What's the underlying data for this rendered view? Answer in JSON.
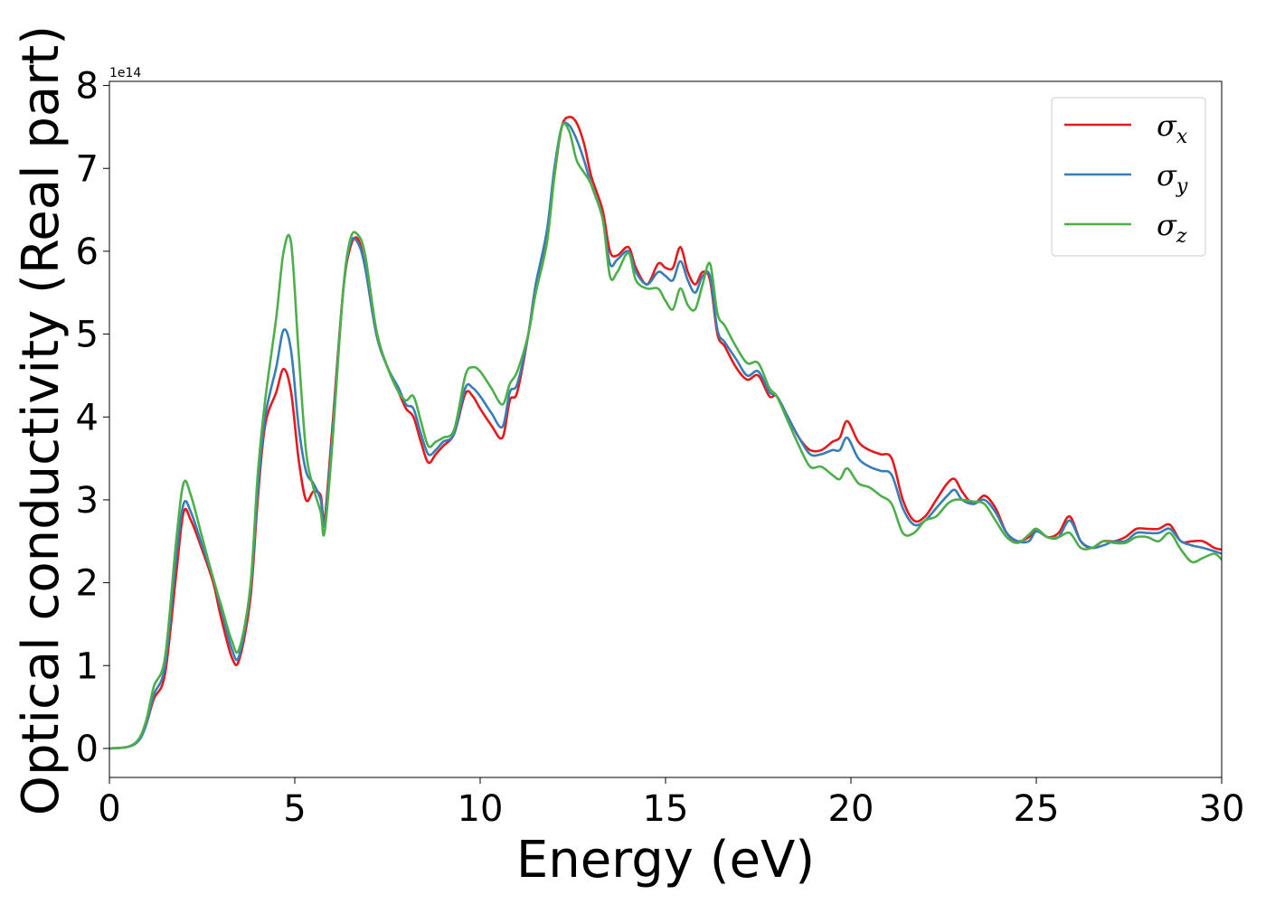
{
  "chart_data": {
    "type": "line",
    "title": "",
    "xlabel": "Energy (eV)",
    "ylabel": "Optical conductivity (Real part)",
    "y_offset_text": "1e14",
    "xlim": [
      0,
      30
    ],
    "ylim": [
      -0.35,
      8.05
    ],
    "xticks": [
      0,
      5,
      10,
      15,
      20,
      25,
      30
    ],
    "yticks": [
      0,
      1,
      2,
      3,
      4,
      5,
      6,
      7,
      8
    ],
    "grid": false,
    "legend_position": "top-right",
    "series": [
      {
        "name": "σx",
        "symbol": "σ",
        "subscript": "x",
        "color": "#e41a1c",
        "x": [
          0,
          0.5,
          0.8,
          1.0,
          1.2,
          1.5,
          1.8,
          2.0,
          2.2,
          2.5,
          2.8,
          3.0,
          3.3,
          3.5,
          3.8,
          4.0,
          4.2,
          4.5,
          4.7,
          4.9,
          5.1,
          5.3,
          5.5,
          5.7,
          5.8,
          6.0,
          6.3,
          6.5,
          6.7,
          6.9,
          7.2,
          7.5,
          7.8,
          8.0,
          8.2,
          8.4,
          8.6,
          8.8,
          9.0,
          9.3,
          9.6,
          9.8,
          10.0,
          10.3,
          10.6,
          10.8,
          11.0,
          11.3,
          11.5,
          11.8,
          12.0,
          12.2,
          12.4,
          12.6,
          12.8,
          13.0,
          13.3,
          13.5,
          13.7,
          14.0,
          14.2,
          14.5,
          14.8,
          15.0,
          15.2,
          15.4,
          15.6,
          15.8,
          16.0,
          16.2,
          16.4,
          16.6,
          16.9,
          17.2,
          17.5,
          17.8,
          18.0,
          18.3,
          18.6,
          18.9,
          19.2,
          19.5,
          19.7,
          19.9,
          20.2,
          20.5,
          20.8,
          21.1,
          21.4,
          21.7,
          22.0,
          22.3,
          22.6,
          22.8,
          23.0,
          23.3,
          23.6,
          23.9,
          24.2,
          24.5,
          24.8,
          25.0,
          25.3,
          25.6,
          25.9,
          26.2,
          26.5,
          26.8,
          27.1,
          27.4,
          27.7,
          28.0,
          28.3,
          28.6,
          28.9,
          29.2,
          29.5,
          29.8,
          30.0
        ],
        "y": [
          0,
          0.02,
          0.1,
          0.3,
          0.6,
          0.9,
          2.1,
          2.85,
          2.75,
          2.4,
          2.0,
          1.6,
          1.1,
          1.07,
          1.8,
          3.0,
          3.9,
          4.3,
          4.58,
          4.3,
          3.5,
          3.0,
          3.1,
          3.05,
          2.75,
          3.8,
          5.5,
          6.05,
          6.15,
          5.8,
          5.0,
          4.6,
          4.3,
          4.1,
          4.0,
          3.7,
          3.45,
          3.55,
          3.65,
          3.8,
          4.28,
          4.25,
          4.1,
          3.9,
          3.75,
          4.2,
          4.3,
          5.0,
          5.6,
          6.2,
          6.9,
          7.5,
          7.62,
          7.55,
          7.3,
          6.9,
          6.5,
          6.0,
          5.95,
          6.05,
          5.8,
          5.6,
          5.85,
          5.8,
          5.8,
          6.05,
          5.75,
          5.6,
          5.75,
          5.65,
          5.0,
          4.85,
          4.6,
          4.45,
          4.5,
          4.25,
          4.25,
          4.0,
          3.75,
          3.6,
          3.6,
          3.7,
          3.75,
          3.95,
          3.7,
          3.6,
          3.55,
          3.5,
          3.0,
          2.75,
          2.8,
          3.0,
          3.2,
          3.25,
          3.1,
          2.95,
          3.05,
          2.9,
          2.6,
          2.5,
          2.55,
          2.65,
          2.55,
          2.6,
          2.8,
          2.5,
          2.42,
          2.5,
          2.5,
          2.55,
          2.65,
          2.65,
          2.65,
          2.7,
          2.5,
          2.5,
          2.5,
          2.42,
          2.4
        ]
      },
      {
        "name": "σy",
        "symbol": "σ",
        "subscript": "y",
        "color": "#377eb8",
        "x": [
          0,
          0.5,
          0.8,
          1.0,
          1.2,
          1.5,
          1.8,
          2.0,
          2.2,
          2.5,
          2.8,
          3.0,
          3.3,
          3.5,
          3.8,
          4.0,
          4.2,
          4.5,
          4.7,
          4.9,
          5.1,
          5.3,
          5.5,
          5.7,
          5.8,
          6.0,
          6.3,
          6.5,
          6.7,
          6.9,
          7.2,
          7.5,
          7.8,
          8.0,
          8.2,
          8.4,
          8.6,
          8.8,
          9.0,
          9.3,
          9.6,
          9.8,
          10.0,
          10.3,
          10.6,
          10.8,
          11.0,
          11.3,
          11.5,
          11.8,
          12.0,
          12.2,
          12.4,
          12.6,
          12.8,
          13.0,
          13.3,
          13.5,
          13.7,
          14.0,
          14.2,
          14.5,
          14.8,
          15.0,
          15.2,
          15.4,
          15.6,
          15.8,
          16.0,
          16.2,
          16.4,
          16.6,
          16.9,
          17.2,
          17.5,
          17.8,
          18.0,
          18.3,
          18.6,
          18.9,
          19.2,
          19.5,
          19.7,
          19.9,
          20.2,
          20.5,
          20.8,
          21.1,
          21.4,
          21.7,
          22.0,
          22.3,
          22.6,
          22.8,
          23.0,
          23.3,
          23.6,
          23.9,
          24.2,
          24.5,
          24.8,
          25.0,
          25.3,
          25.6,
          25.9,
          26.2,
          26.5,
          26.8,
          27.1,
          27.4,
          27.7,
          28.0,
          28.3,
          28.6,
          28.9,
          29.2,
          29.5,
          29.8,
          30.0
        ],
        "y": [
          0,
          0.02,
          0.1,
          0.3,
          0.65,
          1.0,
          2.3,
          2.95,
          2.85,
          2.45,
          2.05,
          1.7,
          1.2,
          1.12,
          1.9,
          3.1,
          4.0,
          4.6,
          5.05,
          4.8,
          3.9,
          3.35,
          3.2,
          3.0,
          2.7,
          3.7,
          5.5,
          6.1,
          6.1,
          5.8,
          5.0,
          4.6,
          4.35,
          4.15,
          4.1,
          3.8,
          3.55,
          3.6,
          3.7,
          3.8,
          4.35,
          4.35,
          4.25,
          4.05,
          3.88,
          4.3,
          4.4,
          5.0,
          5.6,
          6.25,
          7.0,
          7.5,
          7.52,
          7.35,
          7.1,
          6.8,
          6.4,
          5.85,
          5.9,
          6.0,
          5.75,
          5.6,
          5.75,
          5.7,
          5.65,
          5.88,
          5.65,
          5.5,
          5.7,
          5.7,
          5.05,
          4.9,
          4.7,
          4.5,
          4.55,
          4.3,
          4.25,
          4.0,
          3.75,
          3.55,
          3.55,
          3.6,
          3.6,
          3.75,
          3.5,
          3.4,
          3.35,
          3.3,
          2.9,
          2.7,
          2.75,
          2.9,
          3.05,
          3.12,
          3.0,
          2.95,
          3.0,
          2.85,
          2.6,
          2.5,
          2.5,
          2.62,
          2.55,
          2.55,
          2.75,
          2.5,
          2.42,
          2.45,
          2.5,
          2.5,
          2.6,
          2.6,
          2.6,
          2.65,
          2.5,
          2.45,
          2.42,
          2.38,
          2.35
        ]
      },
      {
        "name": "σz",
        "symbol": "σ",
        "subscript": "z",
        "color": "#4daf4a",
        "x": [
          0,
          0.5,
          0.8,
          1.0,
          1.2,
          1.5,
          1.8,
          2.0,
          2.2,
          2.5,
          2.8,
          3.0,
          3.3,
          3.5,
          3.8,
          4.0,
          4.2,
          4.5,
          4.7,
          4.9,
          5.1,
          5.3,
          5.5,
          5.7,
          5.8,
          6.0,
          6.3,
          6.5,
          6.7,
          6.9,
          7.2,
          7.5,
          7.8,
          8.0,
          8.2,
          8.4,
          8.6,
          8.8,
          9.0,
          9.3,
          9.6,
          9.8,
          10.0,
          10.3,
          10.6,
          10.8,
          11.0,
          11.3,
          11.5,
          11.8,
          12.0,
          12.2,
          12.4,
          12.6,
          12.8,
          13.0,
          13.3,
          13.5,
          13.7,
          14.0,
          14.2,
          14.5,
          14.8,
          15.0,
          15.2,
          15.4,
          15.6,
          15.8,
          16.0,
          16.2,
          16.4,
          16.6,
          16.9,
          17.2,
          17.5,
          17.8,
          18.0,
          18.3,
          18.6,
          18.9,
          19.2,
          19.5,
          19.7,
          19.9,
          20.2,
          20.5,
          20.8,
          21.1,
          21.4,
          21.7,
          22.0,
          22.3,
          22.6,
          22.8,
          23.0,
          23.3,
          23.6,
          23.9,
          24.2,
          24.5,
          24.8,
          25.0,
          25.3,
          25.6,
          25.9,
          26.2,
          26.5,
          26.8,
          27.1,
          27.4,
          27.7,
          28.0,
          28.3,
          28.6,
          28.9,
          29.2,
          29.5,
          29.8,
          30.0
        ],
        "y": [
          0,
          0.02,
          0.12,
          0.35,
          0.75,
          1.1,
          2.5,
          3.2,
          3.05,
          2.55,
          2.05,
          1.75,
          1.3,
          1.2,
          1.95,
          3.3,
          4.2,
          5.2,
          6.0,
          6.1,
          4.8,
          3.6,
          3.15,
          2.85,
          2.6,
          3.6,
          5.5,
          6.15,
          6.2,
          5.95,
          5.05,
          4.6,
          4.3,
          4.2,
          4.25,
          3.95,
          3.65,
          3.7,
          3.75,
          3.85,
          4.5,
          4.6,
          4.55,
          4.35,
          4.15,
          4.4,
          4.55,
          5.0,
          5.5,
          6.1,
          6.9,
          7.5,
          7.45,
          7.1,
          6.95,
          6.8,
          6.4,
          5.7,
          5.75,
          5.98,
          5.65,
          5.55,
          5.55,
          5.4,
          5.3,
          5.55,
          5.35,
          5.3,
          5.6,
          5.85,
          5.25,
          5.1,
          4.85,
          4.65,
          4.65,
          4.35,
          4.25,
          3.95,
          3.65,
          3.4,
          3.4,
          3.3,
          3.25,
          3.38,
          3.2,
          3.15,
          3.05,
          2.95,
          2.6,
          2.6,
          2.75,
          2.8,
          2.95,
          3.0,
          3.0,
          2.98,
          2.95,
          2.75,
          2.55,
          2.48,
          2.58,
          2.65,
          2.55,
          2.55,
          2.6,
          2.42,
          2.42,
          2.5,
          2.48,
          2.48,
          2.55,
          2.55,
          2.5,
          2.6,
          2.4,
          2.25,
          2.3,
          2.35,
          2.28
        ]
      }
    ]
  }
}
